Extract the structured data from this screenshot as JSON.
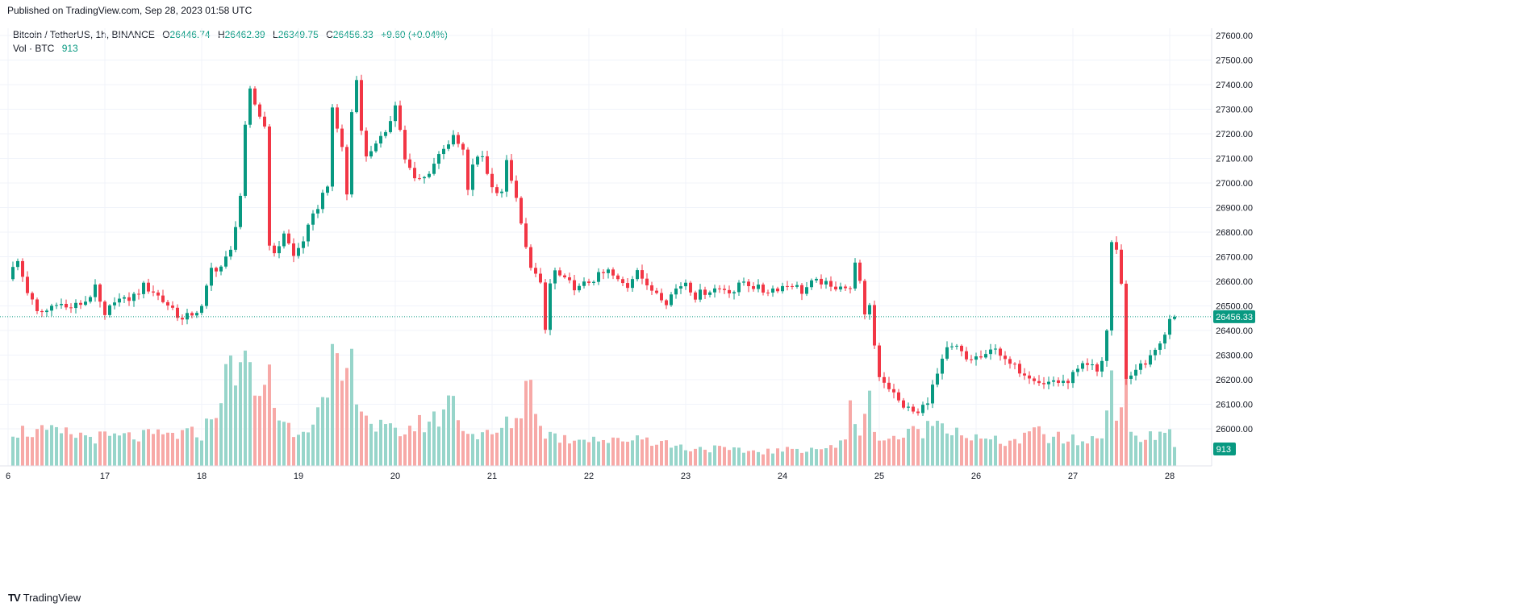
{
  "published": "Published on TradingView.com, Sep 28, 2023 01:58 UTC",
  "legend": {
    "symbol": "Bitcoin / TetherUS, 1h, BINANCE",
    "o_label": "O",
    "o_value": "26446.74",
    "h_label": "H",
    "h_value": "26462.39",
    "l_label": "L",
    "l_value": "26349.75",
    "c_label": "C",
    "c_value": "26456.33",
    "change": "+9.60 (+0.04%)",
    "vol_label": "Vol · BTC",
    "vol_value": "913"
  },
  "brand": {
    "logo": "TV",
    "name": "TradingView"
  },
  "colors": {
    "up": "#089981",
    "down": "#f23645",
    "vol_up": "#97d5ca",
    "vol_down": "#f7a9a7",
    "grid": "#f0f3fa",
    "axis_text": "#131722"
  },
  "chart_data": {
    "type": "candlestick",
    "symbol": "BTCUSDT",
    "interval": "1h",
    "exchange": "BINANCE",
    "y_ticks": [
      "27600.00",
      "27500.00",
      "27400.00",
      "27300.00",
      "27200.00",
      "27100.00",
      "27000.00",
      "26900.00",
      "26800.00",
      "26700.00",
      "26600.00",
      "26500.00",
      "26400.00",
      "26300.00",
      "26200.00",
      "26100.00",
      "26000.00"
    ],
    "ylim": [
      25900,
      27680
    ],
    "x_labels": [
      {
        "label": "6",
        "hour": 0
      },
      {
        "label": "17",
        "hour": 20
      },
      {
        "label": "18",
        "hour": 40
      },
      {
        "label": "19",
        "hour": 60
      },
      {
        "label": "20",
        "hour": 80
      },
      {
        "label": "21",
        "hour": 100
      },
      {
        "label": "22",
        "hour": 120
      },
      {
        "label": "23",
        "hour": 140
      },
      {
        "label": "24",
        "hour": 160
      },
      {
        "label": "25",
        "hour": 180
      },
      {
        "label": "26",
        "hour": 200
      },
      {
        "label": "27",
        "hour": 220
      },
      {
        "label": "28",
        "hour": 240
      }
    ],
    "last_price": 26456.33,
    "last_price_label": "26456.33",
    "last_volume_label": "913",
    "keypoints": [
      [
        0,
        26620
      ],
      [
        2,
        26680
      ],
      [
        4,
        26560
      ],
      [
        6,
        26470
      ],
      [
        8,
        26480
      ],
      [
        10,
        26520
      ],
      [
        12,
        26490
      ],
      [
        14,
        26500
      ],
      [
        16,
        26520
      ],
      [
        18,
        26570
      ],
      [
        20,
        26450
      ],
      [
        22,
        26530
      ],
      [
        24,
        26520
      ],
      [
        26,
        26540
      ],
      [
        28,
        26580
      ],
      [
        30,
        26560
      ],
      [
        32,
        26520
      ],
      [
        34,
        26490
      ],
      [
        36,
        26440
      ],
      [
        38,
        26470
      ],
      [
        40,
        26490
      ],
      [
        42,
        26650
      ],
      [
        44,
        26660
      ],
      [
        46,
        26720
      ],
      [
        48,
        26950
      ],
      [
        49,
        27220
      ],
      [
        50,
        27370
      ],
      [
        51,
        27320
      ],
      [
        53,
        27230
      ],
      [
        54,
        26760
      ],
      [
        55,
        26700
      ],
      [
        57,
        26800
      ],
      [
        59,
        26700
      ],
      [
        61,
        26770
      ],
      [
        63,
        26860
      ],
      [
        66,
        27000
      ],
      [
        67,
        27290
      ],
      [
        69,
        27150
      ],
      [
        70,
        26950
      ],
      [
        71,
        27290
      ],
      [
        72,
        27420
      ],
      [
        73,
        27230
      ],
      [
        74,
        27100
      ],
      [
        76,
        27170
      ],
      [
        78,
        27190
      ],
      [
        80,
        27330
      ],
      [
        82,
        27100
      ],
      [
        84,
        27010
      ],
      [
        86,
        27020
      ],
      [
        88,
        27080
      ],
      [
        90,
        27150
      ],
      [
        92,
        27180
      ],
      [
        94,
        27130
      ],
      [
        95,
        26960
      ],
      [
        96,
        27080
      ],
      [
        98,
        27110
      ],
      [
        100,
        26980
      ],
      [
        102,
        26970
      ],
      [
        103,
        27080
      ],
      [
        104,
        27020
      ],
      [
        106,
        26830
      ],
      [
        107,
        26730
      ],
      [
        108,
        26670
      ],
      [
        110,
        26580
      ],
      [
        111,
        26400
      ],
      [
        112,
        26590
      ],
      [
        113,
        26640
      ],
      [
        115,
        26600
      ],
      [
        118,
        26570
      ],
      [
        120,
        26600
      ],
      [
        122,
        26620
      ],
      [
        124,
        26640
      ],
      [
        126,
        26600
      ],
      [
        128,
        26580
      ],
      [
        130,
        26660
      ],
      [
        132,
        26570
      ],
      [
        134,
        26560
      ],
      [
        136,
        26520
      ],
      [
        138,
        26570
      ],
      [
        140,
        26600
      ],
      [
        142,
        26540
      ],
      [
        144,
        26560
      ],
      [
        146,
        26570
      ],
      [
        148,
        26570
      ],
      [
        150,
        26560
      ],
      [
        152,
        26600
      ],
      [
        154,
        26580
      ],
      [
        156,
        26560
      ],
      [
        158,
        26570
      ],
      [
        160,
        26580
      ],
      [
        162,
        26590
      ],
      [
        164,
        26560
      ],
      [
        166,
        26590
      ],
      [
        168,
        26600
      ],
      [
        170,
        26570
      ],
      [
        172,
        26590
      ],
      [
        174,
        26560
      ],
      [
        175,
        26690
      ],
      [
        176,
        26590
      ],
      [
        177,
        26450
      ],
      [
        178,
        26510
      ],
      [
        179,
        26340
      ],
      [
        180,
        26220
      ],
      [
        182,
        26170
      ],
      [
        184,
        26110
      ],
      [
        186,
        26080
      ],
      [
        188,
        26060
      ],
      [
        190,
        26120
      ],
      [
        192,
        26220
      ],
      [
        194,
        26320
      ],
      [
        196,
        26330
      ],
      [
        198,
        26280
      ],
      [
        200,
        26290
      ],
      [
        202,
        26290
      ],
      [
        204,
        26340
      ],
      [
        206,
        26270
      ],
      [
        208,
        26250
      ],
      [
        210,
        26230
      ],
      [
        212,
        26210
      ],
      [
        214,
        26180
      ],
      [
        216,
        26200
      ],
      [
        218,
        26180
      ],
      [
        220,
        26220
      ],
      [
        222,
        26250
      ],
      [
        224,
        26250
      ],
      [
        225,
        26230
      ],
      [
        226,
        26280
      ],
      [
        227,
        26400
      ],
      [
        228,
        26760
      ],
      [
        229,
        26720
      ],
      [
        230,
        26600
      ],
      [
        231,
        26200
      ],
      [
        232,
        26220
      ],
      [
        233,
        26250
      ],
      [
        235,
        26260
      ],
      [
        236,
        26290
      ],
      [
        237,
        26330
      ],
      [
        239,
        26380
      ],
      [
        240,
        26446.74
      ],
      [
        241,
        26456.33
      ]
    ],
    "volume_keypoints": [
      [
        0,
        120
      ],
      [
        10,
        110
      ],
      [
        20,
        95
      ],
      [
        30,
        100
      ],
      [
        40,
        110
      ],
      [
        42,
        160
      ],
      [
        46,
        330
      ],
      [
        48,
        360
      ],
      [
        50,
        300
      ],
      [
        52,
        210
      ],
      [
        54,
        360
      ],
      [
        55,
        200
      ],
      [
        57,
        140
      ],
      [
        60,
        120
      ],
      [
        66,
        210
      ],
      [
        67,
        330
      ],
      [
        69,
        290
      ],
      [
        71,
        330
      ],
      [
        73,
        220
      ],
      [
        75,
        140
      ],
      [
        80,
        110
      ],
      [
        85,
        140
      ],
      [
        89,
        160
      ],
      [
        91,
        240
      ],
      [
        93,
        180
      ],
      [
        95,
        110
      ],
      [
        100,
        100
      ],
      [
        104,
        150
      ],
      [
        106,
        180
      ],
      [
        107,
        260
      ],
      [
        108,
        340
      ],
      [
        109,
        220
      ],
      [
        110,
        120
      ],
      [
        115,
        90
      ],
      [
        120,
        100
      ],
      [
        125,
        80
      ],
      [
        130,
        100
      ],
      [
        135,
        80
      ],
      [
        140,
        60
      ],
      [
        145,
        60
      ],
      [
        150,
        50
      ],
      [
        155,
        50
      ],
      [
        160,
        50
      ],
      [
        165,
        60
      ],
      [
        170,
        60
      ],
      [
        173,
        80
      ],
      [
        174,
        240
      ],
      [
        175,
        170
      ],
      [
        176,
        110
      ],
      [
        177,
        150
      ],
      [
        178,
        220
      ],
      [
        179,
        150
      ],
      [
        180,
        90
      ],
      [
        185,
        100
      ],
      [
        190,
        130
      ],
      [
        193,
        160
      ],
      [
        195,
        130
      ],
      [
        200,
        90
      ],
      [
        205,
        80
      ],
      [
        210,
        90
      ],
      [
        212,
        120
      ],
      [
        214,
        100
      ],
      [
        218,
        90
      ],
      [
        222,
        80
      ],
      [
        226,
        100
      ],
      [
        227,
        240
      ],
      [
        228,
        310
      ],
      [
        229,
        200
      ],
      [
        230,
        160
      ],
      [
        231,
        280
      ],
      [
        232,
        140
      ],
      [
        234,
        90
      ],
      [
        238,
        100
      ],
      [
        240,
        130
      ],
      [
        241,
        70
      ]
    ],
    "volume_max": 380
  }
}
